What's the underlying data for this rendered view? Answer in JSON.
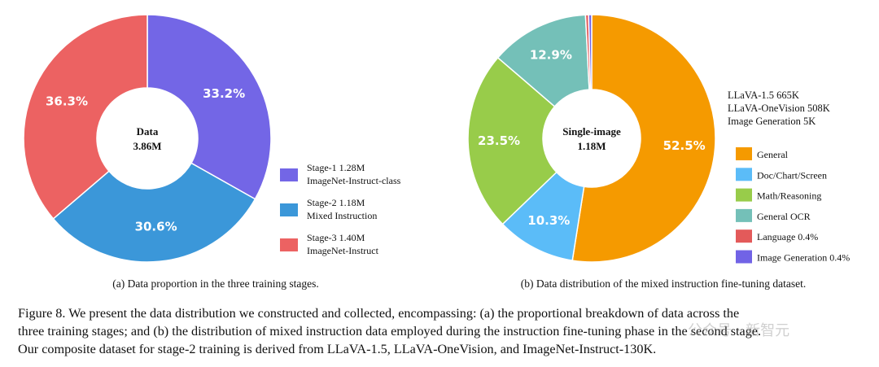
{
  "chart_data": [
    {
      "type": "pie",
      "donut": true,
      "center_label": [
        "Data",
        "3.86M"
      ],
      "slices": [
        {
          "name": "Stage-1",
          "value": 1.28,
          "unit": "M",
          "desc": "ImageNet-Instruct-class",
          "percent": 33.2,
          "color": "#7366e6"
        },
        {
          "name": "Stage-2",
          "value": 1.18,
          "unit": "M",
          "desc": "Mixed Instruction",
          "percent": 30.6,
          "color": "#3b97d9"
        },
        {
          "name": "Stage-3",
          "value": 1.4,
          "unit": "M",
          "desc": "ImageNet-Instruct",
          "percent": 36.3,
          "color": "#ec6262"
        }
      ],
      "percent_labels": [
        "33.2%",
        "30.6%",
        "36.3%"
      ],
      "legend": [
        [
          "Stage-1 1.28M",
          "ImageNet-Instruct-class"
        ],
        [
          "Stage-2 1.18M",
          "Mixed Instruction"
        ],
        [
          "Stage-3 1.40M",
          "ImageNet-Instruct"
        ]
      ],
      "legend_position": "right",
      "subcaption": "(a) Data proportion in the three training stages."
    },
    {
      "type": "pie",
      "donut": true,
      "center_label": [
        "Single-image",
        "1.18M"
      ],
      "slices": [
        {
          "name": "General",
          "percent": 52.5,
          "color": "#f59a00"
        },
        {
          "name": "Doc/Chart/Screen",
          "percent": 10.3,
          "color": "#5bbcf8"
        },
        {
          "name": "Math/Reasoning",
          "percent": 23.5,
          "color": "#98cc4a"
        },
        {
          "name": "General OCR",
          "percent": 12.9,
          "color": "#74c0b8"
        },
        {
          "name": "Language",
          "percent": 0.4,
          "color": "#e35a5a"
        },
        {
          "name": "Image Generation",
          "percent": 0.4,
          "color": "#7163e6"
        }
      ],
      "percent_labels": [
        "52.5%",
        "10.3%",
        "23.5%",
        "12.9%"
      ],
      "sources": [
        "LLaVA-1.5 665K",
        "LLaVA-OneVision 508K",
        "Image Generation 5K"
      ],
      "legend": [
        "General",
        "Doc/Chart/Screen",
        "Math/Reasoning",
        "General OCR",
        "Language 0.4%",
        "Image Generation 0.4%"
      ],
      "legend_position": "right",
      "subcaption": "(b) Data distribution of the mixed instruction fine-tuning dataset."
    }
  ],
  "caption": {
    "lines": [
      "Figure 8. We present the data distribution we constructed and collected, encompassing: (a) the proportional breakdown of data across the",
      "three training stages; and (b) the distribution of mixed instruction data employed during the instruction fine-tuning phase in the second stage.",
      "Our composite dataset for stage-2 training is derived from LLaVA-1.5, LLaVA-OneVision, and ImageNet-Instruct-130K."
    ]
  },
  "watermark": "公众号 · 新智元"
}
